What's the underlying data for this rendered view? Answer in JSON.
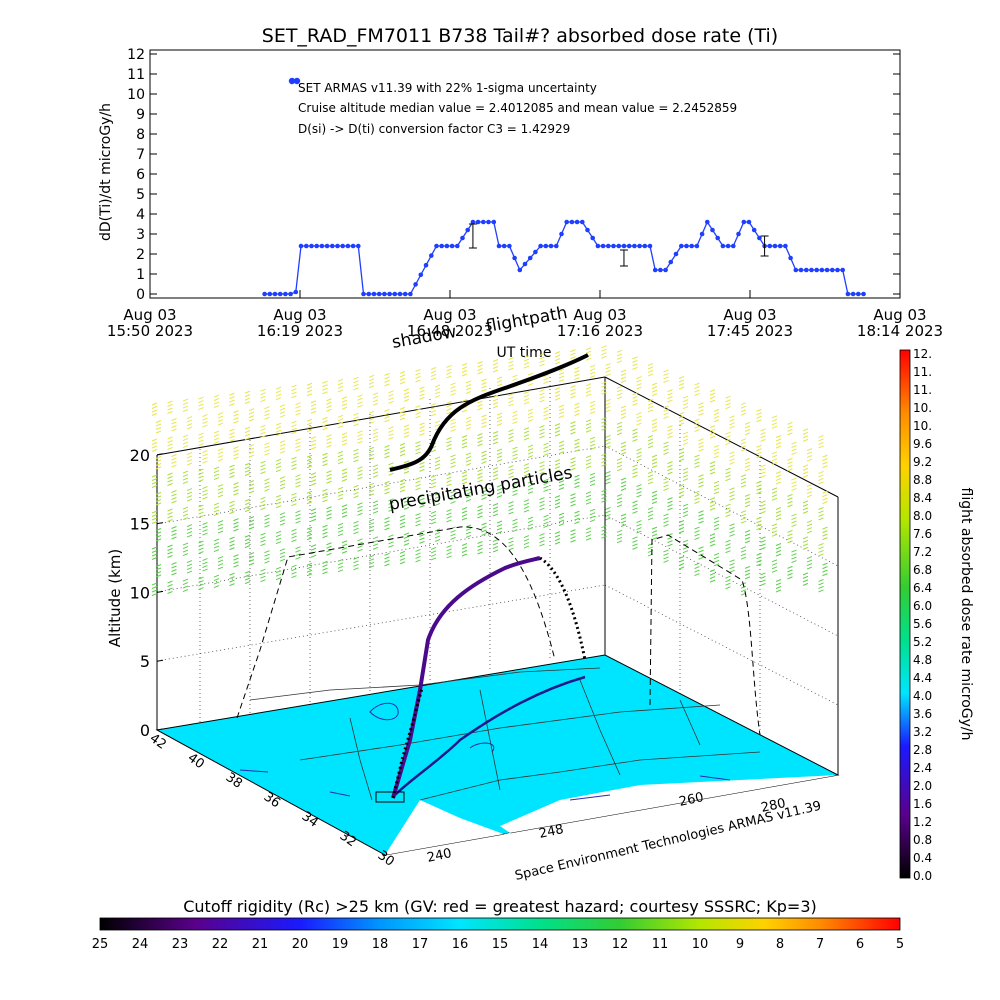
{
  "title": "SET_RAD_FM7011  B738 Tail#? absorbed dose rate (Ti)",
  "top_chart": {
    "ylabel": "dD(Ti)/dt microGy/h",
    "xlabel": "UT time",
    "y_ticks": [
      "0",
      "1",
      "2",
      "3",
      "4",
      "5",
      "6",
      "7",
      "8",
      "9",
      "10",
      "11",
      "12"
    ],
    "x_ticks": [
      {
        "line1": "Aug 03",
        "line2": "15:50 2023"
      },
      {
        "line1": "Aug 03",
        "line2": "16:19 2023"
      },
      {
        "line1": "Aug 03",
        "line2": "16:48 2023"
      },
      {
        "line1": "Aug 03",
        "line2": "17:16 2023"
      },
      {
        "line1": "Aug 03",
        "line2": "17:45 2023"
      },
      {
        "line1": "Aug 03",
        "line2": "18:14 2023"
      }
    ],
    "annotations": [
      "SET ARMAS v11.39 with 22% 1-sigma uncertainty",
      "Cruise altitude median value = 2.4012085 and mean value = 2.2452859",
      "D(si) -> D(ti) conversion factor C3 = 1.42929"
    ],
    "series_color": "#1f3fff"
  },
  "chart_data": {
    "type": "line",
    "title": "SET_RAD_FM7011  B738 Tail#? absorbed dose rate (Ti)",
    "xlabel": "UT time",
    "ylabel": "dD(Ti)/dt microGy/h",
    "ylim": [
      0,
      12
    ],
    "x_unit": "minutes after 15:50 UT",
    "xlim": [
      0,
      144
    ],
    "series": [
      {
        "x": [
          22,
          25,
          27,
          28,
          29,
          33,
          36,
          39,
          40,
          41,
          43,
          50,
          55,
          56,
          59,
          62,
          65,
          66,
          67,
          69,
          71,
          75,
          76,
          78,
          80,
          83,
          86,
          88,
          90,
          93,
          96,
          97,
          99,
          102,
          103,
          105,
          107,
          110,
          112,
          114,
          115,
          118,
          120,
          122,
          123,
          124,
          126,
          129,
          132,
          133,
          134,
          137
        ],
        "y": [
          0,
          0,
          0,
          0.1,
          2.4,
          2.4,
          2.4,
          2.4,
          2.4,
          0,
          0,
          0,
          2.4,
          2.4,
          2.4,
          3.6,
          3.6,
          3.6,
          2.4,
          2.4,
          1.2,
          2.4,
          2.4,
          2.4,
          3.6,
          3.6,
          2.4,
          2.4,
          2.4,
          2.4,
          2.4,
          1.2,
          1.2,
          2.4,
          2.4,
          2.4,
          3.6,
          2.4,
          2.4,
          3.6,
          3.6,
          2.4,
          2.4,
          2.4,
          1.8,
          1.2,
          1.2,
          1.2,
          1.2,
          1.2,
          0,
          0
        ]
      }
    ],
    "error_bars": [
      {
        "x": 62,
        "y": 2.9,
        "err": 0.6
      },
      {
        "x": 91,
        "y": 1.8,
        "err": 0.4
      },
      {
        "x": 118,
        "y": 2.4,
        "err": 0.5
      }
    ]
  },
  "three_d": {
    "ylabel": "Altitude (km)",
    "z_ticks": [
      "0",
      "5",
      "10",
      "15",
      "20"
    ],
    "lat_ticks": [
      "42",
      "40",
      "38",
      "36",
      "34",
      "32",
      "30"
    ],
    "lon_ticks_front": [
      "240",
      "248",
      "260"
    ],
    "lon_ticks_right": [
      "280"
    ],
    "credit": "Space Environment Technologies ARMAS v11.39",
    "labels": {
      "shadow": "shadow",
      "flightpath": "flightpath",
      "precip": "precipitating particles"
    },
    "ground_color": "#00e5ff"
  },
  "dose_colorbar": {
    "label": "flight absorbed dose rate microGy/h",
    "ticks": [
      "0.0",
      "0.4",
      "0.8",
      "1.2",
      "1.6",
      "2.0",
      "2.4",
      "2.8",
      "3.2",
      "3.6",
      "4.0",
      "4.4",
      "4.8",
      "5.2",
      "5.6",
      "6.0",
      "6.4",
      "6.8",
      "7.2",
      "7.6",
      "8.0",
      "8.4",
      "8.8",
      "9.2",
      "9.6",
      "10.",
      "10.",
      "11.",
      "11.",
      "12."
    ]
  },
  "rc_colorbar": {
    "title": "Cutoff rigidity (Rc) >25 km (GV: red = greatest hazard; courtesy SSSRC; Kp=3)",
    "ticks": [
      "25",
      "24",
      "23",
      "22",
      "21",
      "20",
      "19",
      "18",
      "17",
      "16",
      "15",
      "14",
      "13",
      "12",
      "11",
      "10",
      "9",
      "8",
      "7",
      "6",
      "5"
    ]
  }
}
